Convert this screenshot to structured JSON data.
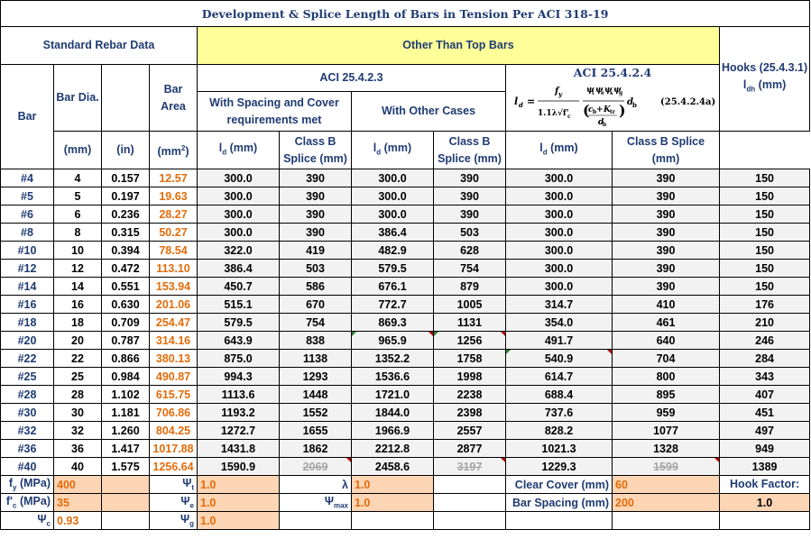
{
  "title": "Development & Splice Length of Bars in Tension Per ACI 318-19",
  "headers": {
    "standard": "Standard Rebar Data",
    "other_top": "Other Than Top Bars",
    "aci_2523": "ACI 25.4.2.3",
    "aci_2524": "ACI 25.4.2.4",
    "hooks": "Hooks (25.4.3.1)",
    "hooks_sub": "(mm)",
    "bar": "Bar",
    "bar_dia": "Bar Dia.",
    "bar_area_1": "Bar",
    "bar_area_2": "Area",
    "with_spacing": "With Spacing and Cover requirements met",
    "other_cases": "With Other Cases",
    "mm": "(mm)",
    "in": "(in)",
    "mm2": "(mm",
    "ld": "(mm)",
    "class_b": "Class B Splice (mm)",
    "class_b_splice": "Class B Splice (mm)",
    "formula_ref": "(25.4.2.4a)"
  },
  "rows": [
    {
      "bar": "#4",
      "mm": "4",
      "in": "0.157",
      "area": "12.57",
      "ld1": "300.0",
      "s1": "390",
      "ld2": "300.0",
      "s2": "390",
      "ld3": "300.0",
      "s3": "390",
      "hook": "150"
    },
    {
      "bar": "#5",
      "mm": "5",
      "in": "0.197",
      "area": "19.63",
      "ld1": "300.0",
      "s1": "390",
      "ld2": "300.0",
      "s2": "390",
      "ld3": "300.0",
      "s3": "390",
      "hook": "150"
    },
    {
      "bar": "#6",
      "mm": "6",
      "in": "0.236",
      "area": "28.27",
      "ld1": "300.0",
      "s1": "390",
      "ld2": "300.0",
      "s2": "390",
      "ld3": "300.0",
      "s3": "390",
      "hook": "150"
    },
    {
      "bar": "#8",
      "mm": "8",
      "in": "0.315",
      "area": "50.27",
      "ld1": "300.0",
      "s1": "390",
      "ld2": "386.4",
      "s2": "503",
      "ld3": "300.0",
      "s3": "390",
      "hook": "150"
    },
    {
      "bar": "#10",
      "mm": "10",
      "in": "0.394",
      "area": "78.54",
      "ld1": "322.0",
      "s1": "419",
      "ld2": "482.9",
      "s2": "628",
      "ld3": "300.0",
      "s3": "390",
      "hook": "150"
    },
    {
      "bar": "#12",
      "mm": "12",
      "in": "0.472",
      "area": "113.10",
      "ld1": "386.4",
      "s1": "503",
      "ld2": "579.5",
      "s2": "754",
      "ld3": "300.0",
      "s3": "390",
      "hook": "150"
    },
    {
      "bar": "#14",
      "mm": "14",
      "in": "0.551",
      "area": "153.94",
      "ld1": "450.7",
      "s1": "586",
      "ld2": "676.1",
      "s2": "879",
      "ld3": "300.0",
      "s3": "390",
      "hook": "150"
    },
    {
      "bar": "#16",
      "mm": "16",
      "in": "0.630",
      "area": "201.06",
      "ld1": "515.1",
      "s1": "670",
      "ld2": "772.7",
      "s2": "1005",
      "ld3": "314.7",
      "s3": "410",
      "hook": "176"
    },
    {
      "bar": "#18",
      "mm": "18",
      "in": "0.709",
      "area": "254.47",
      "ld1": "579.5",
      "s1": "754",
      "ld2": "869.3",
      "s2": "1131",
      "ld3": "354.0",
      "s3": "461",
      "hook": "210"
    },
    {
      "bar": "#20",
      "mm": "20",
      "in": "0.787",
      "area": "314.16",
      "ld1": "643.9",
      "s1": "838",
      "ld2": "965.9",
      "s2": "1256",
      "ld3": "491.7",
      "s3": "640",
      "hook": "246"
    },
    {
      "bar": "#22",
      "mm": "22",
      "in": "0.866",
      "area": "380.13",
      "ld1": "875.0",
      "s1": "1138",
      "ld2": "1352.2",
      "s2": "1758",
      "ld3": "540.9",
      "s3": "704",
      "hook": "284"
    },
    {
      "bar": "#25",
      "mm": "25",
      "in": "0.984",
      "area": "490.87",
      "ld1": "994.3",
      "s1": "1293",
      "ld2": "1536.6",
      "s2": "1998",
      "ld3": "614.7",
      "s3": "800",
      "hook": "343"
    },
    {
      "bar": "#28",
      "mm": "28",
      "in": "1.102",
      "area": "615.75",
      "ld1": "1113.6",
      "s1": "1448",
      "ld2": "1721.0",
      "s2": "2238",
      "ld3": "688.4",
      "s3": "895",
      "hook": "407"
    },
    {
      "bar": "#30",
      "mm": "30",
      "in": "1.181",
      "area": "706.86",
      "ld1": "1193.2",
      "s1": "1552",
      "ld2": "1844.0",
      "s2": "2398",
      "ld3": "737.6",
      "s3": "959",
      "hook": "451"
    },
    {
      "bar": "#32",
      "mm": "32",
      "in": "1.260",
      "area": "804.25",
      "ld1": "1272.7",
      "s1": "1655",
      "ld2": "1966.9",
      "s2": "2557",
      "ld3": "828.2",
      "s3": "1077",
      "hook": "497"
    },
    {
      "bar": "#36",
      "mm": "36",
      "in": "1.417",
      "area": "1017.88",
      "ld1": "1431.8",
      "s1": "1862",
      "ld2": "2212.8",
      "s2": "2877",
      "ld3": "1021.3",
      "s3": "1328",
      "hook": "949"
    },
    {
      "bar": "#40",
      "mm": "40",
      "in": "1.575",
      "area": "1256.64",
      "ld1": "1590.9",
      "s1": "2069",
      "ld2": "2458.6",
      "s2": "3197",
      "ld3": "1229.3",
      "s3": "1599",
      "hook": "1389"
    }
  ],
  "inputs": {
    "fy_label": "(MPa)",
    "fy": "400",
    "fc_label": "(MPa)",
    "fc": "35",
    "psi_c": "0.93",
    "psi_t": "1.0",
    "psi_e": "1.0",
    "psi_g": "1.0",
    "lambda": "1.0",
    "psi_max": "1.0",
    "clear_cover_label": "Clear Cover (mm)",
    "clear_cover": "60",
    "bar_spacing_label": "Bar Spacing (mm)",
    "bar_spacing": "200",
    "hook_factor_label": "Hook Factor:",
    "hook_factor": "1.0"
  },
  "colors": {
    "title": "#1f3b73",
    "area": "#e46c0a",
    "header_fill": "#ffff99",
    "input_fill": "#fcd5b4",
    "comment_marker": "#c00000"
  }
}
